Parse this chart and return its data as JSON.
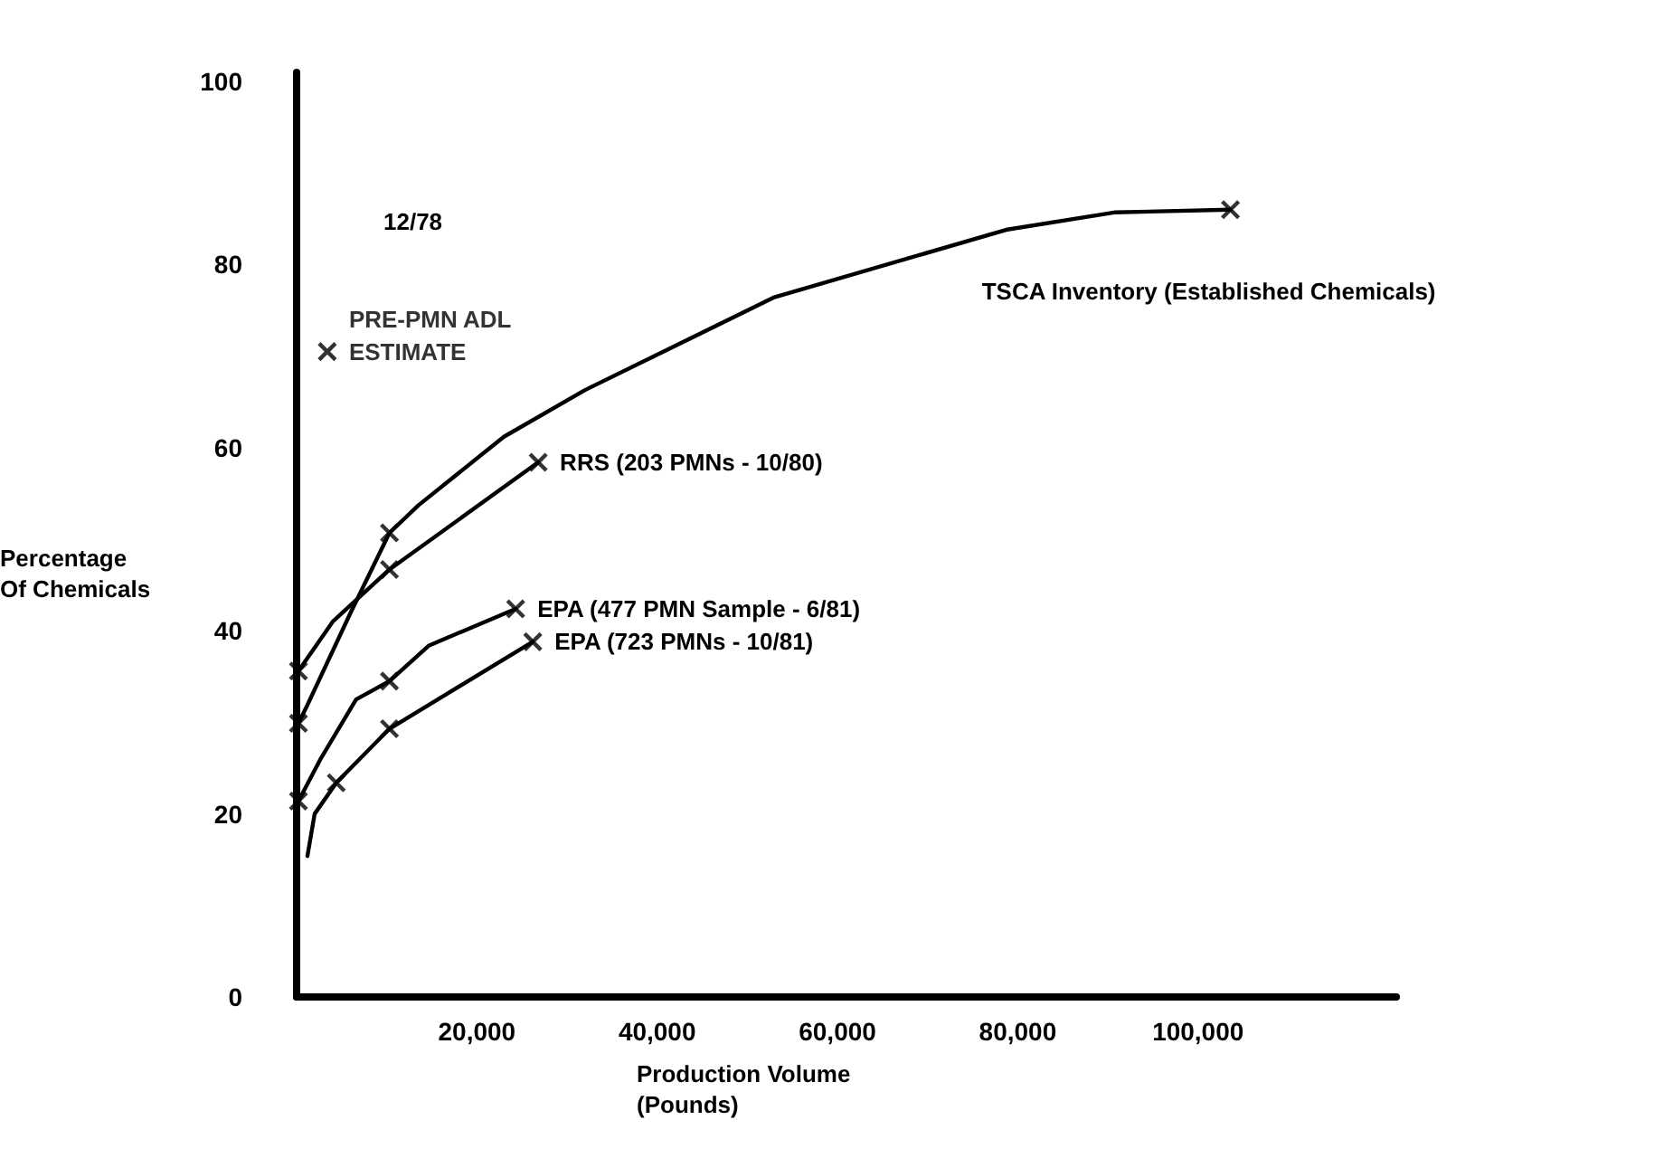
{
  "chart_data": {
    "type": "line",
    "xlabel": "Production Volume (Pounds)",
    "ylabel": "Percentage Of Chemicals",
    "xlim": [
      0,
      122000
    ],
    "xticks": [
      {
        "value": 20000,
        "label": "20,000"
      },
      {
        "value": 40000,
        "label": "40,000"
      },
      {
        "value": 60000,
        "label": "60,000"
      },
      {
        "value": 80000,
        "label": "80,000"
      },
      {
        "value": 100000,
        "label": "100,000"
      }
    ],
    "ylim": [
      0,
      101
    ],
    "yticks": [
      0,
      20,
      40,
      60,
      80,
      100
    ],
    "grid": false,
    "legend": false,
    "annotations": [
      "12/78"
    ],
    "series": [
      {
        "name": "TSCA Inventory (Established Chemicals)",
        "color": "#000000",
        "marker": "none",
        "x": [
          200,
          1200,
          6000,
          10300,
          13500,
          23000,
          32000,
          52900,
          78700,
          90700,
          103600
        ],
        "values": [
          29.9,
          31.9,
          42,
          50.7,
          53.7,
          61.2,
          66.3,
          76.4,
          83.8,
          85.7,
          86
        ]
      },
      {
        "name": "RRS (203 PMNs - 10/80)",
        "color": "#000000",
        "marker": "none",
        "x": [
          200,
          4000,
          10300,
          26800
        ],
        "values": [
          35.6,
          41,
          46.7,
          58.4
        ]
      },
      {
        "name": "EPA (477 PMN Sample - 6/81)",
        "color": "#000000",
        "marker": "none",
        "x": [
          200,
          2600,
          6600,
          10300,
          14700,
          24300
        ],
        "values": [
          21.4,
          25.9,
          32.5,
          34.5,
          38.4,
          42.4
        ]
      },
      {
        "name": "EPA (723 PMNs - 10/81)",
        "color": "#000000",
        "marker": "none",
        "x": [
          1200,
          2000,
          4400,
          10300,
          26200
        ],
        "values": [
          15.4,
          20,
          23.4,
          29.3,
          38.8
        ]
      },
      {
        "type": "scatter",
        "color": "#000000",
        "marker": "cross",
        "x": [
          200,
          10300,
          103600,
          200,
          10300,
          26800,
          200,
          10300,
          24300,
          4400,
          10300,
          26200
        ],
        "values": [
          29.9,
          50.7,
          86,
          35.6,
          46.7,
          58.4,
          21.4,
          34.5,
          42.4,
          23.4,
          29.3,
          38.8
        ]
      },
      {
        "type": "scatter",
        "name": "PRE-PMN ADL ESTIMATE",
        "color": "#000000",
        "marker": "cross",
        "x": [
          3400
        ],
        "values": [
          70.5
        ]
      }
    ]
  }
}
